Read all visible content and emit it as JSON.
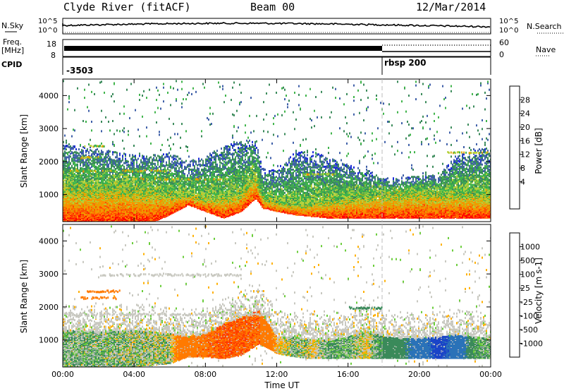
{
  "header": {
    "station": "Clyde River (fitACF)",
    "beam": "Beam 00",
    "date": "12/Mar/2014"
  },
  "top_panels": {
    "nsky_label": "N.Sky",
    "nsky_ticks": [
      "10^5",
      "10^0"
    ],
    "nsearch_label": "N.Search",
    "nsearch_ticks": [
      "10^5",
      "10^0"
    ],
    "freq_label_1": "Freq.",
    "freq_label_2": "[MHz]",
    "freq_ticks": [
      "18",
      "8"
    ],
    "nave_label": "Nave",
    "nave_ticks": [
      "60",
      "0"
    ],
    "cpid_label": "CPID",
    "cpid_segments": [
      {
        "label": "-3503",
        "start_hour": 0
      },
      {
        "label": "rbsp 200",
        "start_hour": 18
      }
    ]
  },
  "power_panel": {
    "ylabel": "Slant Range [km]",
    "cbar_label": "Power [dB]",
    "cbar_ticks": [
      "28",
      "24",
      "20",
      "16",
      "12",
      "8",
      "4"
    ],
    "cbar_colors": [
      "#ff0000",
      "#ff4a00",
      "#ff8c00",
      "#e0a800",
      "#b5d03a",
      "#3fb44a",
      "#3a8a5a",
      "#3e5fa8",
      "#1a2ad8"
    ]
  },
  "velocity_panel": {
    "ylabel": "Slant Range [km]",
    "cbar_label": "Velocity [m s-1]",
    "cbar_ticks": [
      "1000",
      "500",
      "100",
      "25",
      "-25",
      "-100",
      "-500",
      "-1000"
    ],
    "cbar_colors": [
      "#1a44c8",
      "#2a72b8",
      "#3a8a5a",
      "#6acd3a",
      "#c8c8c0",
      "#ffb000",
      "#ff7a00",
      "#ff3a00",
      "#ff0000"
    ]
  },
  "xaxis": {
    "label": "Time UT",
    "ticks": [
      "00:00",
      "04:00",
      "08:00",
      "12:00",
      "16:00",
      "20:00",
      "00:00"
    ]
  },
  "yaxis_ticks": [
    "4000",
    "3000",
    "2000",
    "1000"
  ],
  "chart_data": [
    {
      "type": "heatmap",
      "title": "Power [dB]",
      "xlabel": "Time UT",
      "ylabel": "Slant Range [km]",
      "xlim_hours": [
        0,
        24
      ],
      "ylim_km": [
        180,
        4500
      ],
      "value_range_db": [
        0,
        30
      ],
      "profile": {
        "hours": [
          0,
          1,
          2,
          3,
          4,
          5,
          6,
          7,
          8,
          9,
          10,
          10.8,
          11.2,
          12,
          13,
          14,
          15,
          16,
          17,
          18,
          19,
          20,
          21,
          22,
          23,
          24
        ],
        "floor_km": [
          180,
          180,
          180,
          180,
          180,
          180,
          400,
          700,
          500,
          300,
          500,
          900,
          600,
          500,
          400,
          350,
          300,
          300,
          300,
          300,
          300,
          300,
          300,
          300,
          300,
          300
        ],
        "core_top_km": [
          1300,
          1250,
          1300,
          1300,
          1250,
          1200,
          1100,
          1000,
          950,
          1000,
          1100,
          1600,
          900,
          800,
          700,
          750,
          900,
          950,
          1000,
          1100,
          1100,
          1150,
          1100,
          1100,
          1100,
          1050
        ],
        "top_km": [
          2600,
          2500,
          2400,
          2300,
          2200,
          2200,
          2300,
          2000,
          2200,
          2500,
          2700,
          2600,
          1800,
          1800,
          2300,
          2300,
          2100,
          1900,
          1800,
          1500,
          1500,
          1600,
          1600,
          2200,
          2400,
          2400
        ]
      }
    },
    {
      "type": "heatmap",
      "title": "Velocity [m s-1]",
      "xlabel": "Time UT",
      "ylabel": "Slant Range [km]",
      "xlim_hours": [
        0,
        24
      ],
      "ylim_km": [
        180,
        4500
      ],
      "value_range_ms": [
        -1000,
        1000
      ],
      "profile": {
        "hours": [
          0,
          2,
          4,
          6,
          7,
          8,
          9,
          10,
          11,
          12,
          13,
          14,
          15,
          16,
          17,
          18,
          19,
          20,
          21,
          22,
          23,
          24
        ],
        "floor_km": [
          200,
          200,
          200,
          300,
          500,
          500,
          450,
          550,
          900,
          600,
          500,
          450,
          450,
          450,
          450,
          450,
          450,
          450,
          450,
          450,
          450,
          450
        ],
        "top_km": [
          1300,
          1250,
          1300,
          1200,
          1100,
          1200,
          1500,
          1700,
          1900,
          1100,
          1100,
          1000,
          1000,
          1100,
          1300,
          1100,
          1050,
          1050,
          1100,
          1150,
          1100,
          1050
        ],
        "velocity_ms": [
          50,
          50,
          30,
          20,
          -400,
          -450,
          -500,
          -500,
          -450,
          -50,
          50,
          -20,
          80,
          60,
          -30,
          150,
          200,
          500,
          900,
          600,
          100,
          50
        ]
      }
    }
  ]
}
